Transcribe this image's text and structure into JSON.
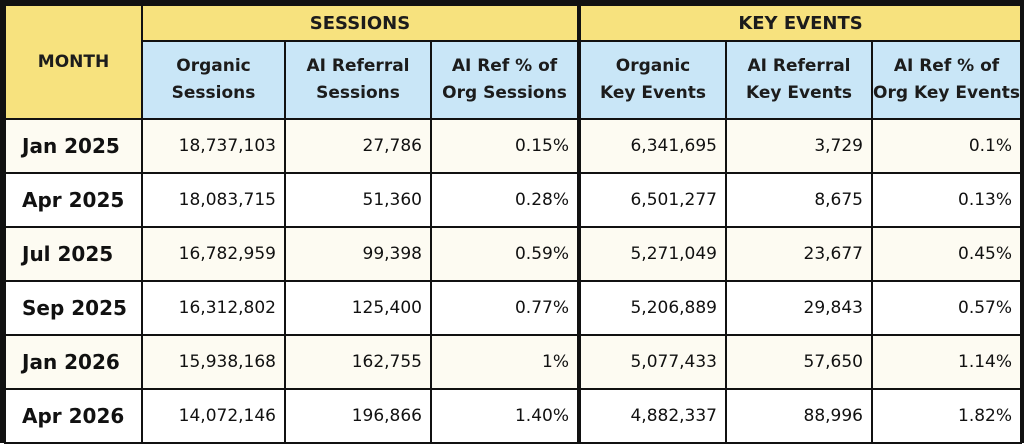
{
  "chart_data": {
    "type": "table",
    "month_header": "MONTH",
    "groups": [
      "SESSIONS",
      "KEY EVENTS"
    ],
    "columns": [
      [
        "Organic",
        "Sessions"
      ],
      [
        "AI Referral",
        "Sessions"
      ],
      [
        "AI Ref % of",
        "Org Sessions"
      ],
      [
        "Organic",
        "Key Events"
      ],
      [
        "AI Referral",
        "Key Events"
      ],
      [
        "AI Ref % of",
        "Org Key Events"
      ]
    ],
    "rows": [
      {
        "month": "Jan 2025",
        "values": [
          "18,737,103",
          "27,786",
          "0.15%",
          "6,341,695",
          "3,729",
          "0.1%"
        ]
      },
      {
        "month": "Apr 2025",
        "values": [
          "18,083,715",
          "51,360",
          "0.28%",
          "6,501,277",
          "8,675",
          "0.13%"
        ]
      },
      {
        "month": "Jul 2025",
        "values": [
          "16,782,959",
          "99,398",
          "0.59%",
          "5,271,049",
          "23,677",
          "0.45%"
        ]
      },
      {
        "month": "Sep 2025",
        "values": [
          "16,312,802",
          "125,400",
          "0.77%",
          "5,206,889",
          "29,843",
          "0.57%"
        ]
      },
      {
        "month": "Jan 2026",
        "values": [
          "15,938,168",
          "162,755",
          "1%",
          "5,077,433",
          "57,650",
          "1.14%"
        ]
      },
      {
        "month": "Apr 2026",
        "values": [
          "14,072,146",
          "196,866",
          "1.40%",
          "4,882,337",
          "88,996",
          "1.82%"
        ]
      }
    ],
    "colors": {
      "header_yellow": "#f7e27e",
      "header_blue": "#c9e6f7",
      "row_alt": "#fdfbf2"
    }
  }
}
